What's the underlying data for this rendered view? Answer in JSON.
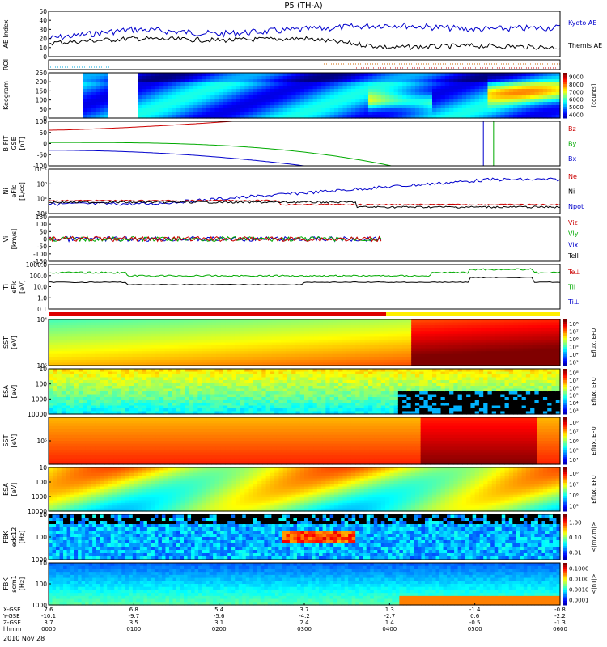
{
  "title": "P5 (TH-A)",
  "date": "2010 Nov 28",
  "panels": [
    {
      "id": "ae",
      "label": [
        "AE Index"
      ],
      "ticks": [
        "0",
        "10",
        "20",
        "30",
        "40",
        "50"
      ],
      "legend": [
        {
          "text": "Kyoto AE",
          "color": "#0000cc"
        },
        {
          "text": "Themis AE",
          "color": "#000000"
        }
      ]
    },
    {
      "id": "roi",
      "label": [
        "ROI"
      ],
      "ticks": [],
      "legend": []
    },
    {
      "id": "keogram",
      "label": [
        "Keogram"
      ],
      "ticks": [
        "0",
        "50",
        "100",
        "150",
        "200",
        "250"
      ],
      "colorbar": {
        "ticks": [
          "9000",
          "8000",
          "7000",
          "6000",
          "5000",
          "4000"
        ],
        "unit": "[counts]"
      },
      "legend": []
    },
    {
      "id": "bfit",
      "label": [
        "B FIT",
        "GSE",
        "[nT]"
      ],
      "ticks": [
        "-100",
        "-50",
        "0",
        "50",
        "100"
      ],
      "legend": [
        {
          "text": "Bz",
          "color": "#cc0000"
        },
        {
          "text": "By",
          "color": "#00aa00"
        },
        {
          "text": "Bx",
          "color": "#0000cc"
        }
      ]
    },
    {
      "id": "ni",
      "label": [
        "Ni",
        "eFlc",
        "[1/cc]"
      ],
      "ticks": [
        "10⁴",
        "10²",
        "10⁰",
        "10⁻²"
      ],
      "legend": [
        {
          "text": "Ne",
          "color": "#cc0000"
        },
        {
          "text": "Ni",
          "color": "#000000"
        },
        {
          "text": "Npot",
          "color": "#0000cc"
        }
      ]
    },
    {
      "id": "vi",
      "label": [
        "Vi",
        "[km/s]"
      ],
      "ticks": [
        "150",
        "100",
        "50",
        "0",
        "-50",
        "-100",
        "-150"
      ],
      "legend": [
        {
          "text": "Viz",
          "color": "#cc0000"
        },
        {
          "text": "Vly",
          "color": "#00aa00"
        },
        {
          "text": "Vix",
          "color": "#0000cc"
        },
        {
          "text": "Tell",
          "color": "#000000"
        }
      ]
    },
    {
      "id": "ti",
      "label": [
        "Ti",
        "eFlc",
        "[eV]"
      ],
      "ticks": [
        "1000.0",
        "100.0",
        "10.0",
        "1.0",
        "0.1"
      ],
      "legend": [
        {
          "text": "Te⊥",
          "color": "#cc0000"
        },
        {
          "text": "Til",
          "color": "#00aa00"
        },
        {
          "text": "Ti⊥",
          "color": "#0000cc"
        }
      ]
    },
    {
      "id": "sst_i",
      "label": [
        "SST",
        "[eV]"
      ],
      "ticks": [
        "10⁵",
        "10⁴"
      ],
      "colorbar": {
        "ticks": [
          "10⁸",
          "10⁷",
          "10⁶",
          "10⁵",
          "10⁴",
          "10³"
        ],
        "unit": "Eflux, EFU"
      },
      "legend": []
    },
    {
      "id": "esa_i",
      "label": [
        "ESA",
        "[eV]"
      ],
      "ticks": [
        "10000",
        "1000",
        "100",
        "10"
      ],
      "colorbar": {
        "ticks": [
          "10⁸",
          "10⁷",
          "10⁶",
          "10⁵",
          "10⁴",
          "10³"
        ],
        "unit": "Eflux, EFU"
      },
      "legend": []
    },
    {
      "id": "sst_e",
      "label": [
        "SST",
        "[eV]"
      ],
      "ticks": [
        "10⁵"
      ],
      "colorbar": {
        "ticks": [
          "10⁸",
          "10⁷",
          "10⁶",
          "10⁵",
          "10⁴"
        ],
        "unit": "Eflux, EFU"
      },
      "legend": []
    },
    {
      "id": "esa_e",
      "label": [
        "ESA",
        "[eV]"
      ],
      "ticks": [
        "10000",
        "1000",
        "100",
        "10"
      ],
      "colorbar": {
        "ticks": [
          "10⁸",
          "10⁷",
          "10⁶",
          "10⁵"
        ],
        "unit": "Eflux, EFU"
      },
      "legend": []
    },
    {
      "id": "fbk1",
      "label": [
        "FBK",
        "edc12",
        "[Hz]"
      ],
      "ticks": [
        "1000",
        "100",
        "10"
      ],
      "colorbar": {
        "ticks": [
          "1.00",
          "0.10",
          "0.01"
        ],
        "unit": "<|mV/m|>"
      },
      "legend": []
    },
    {
      "id": "fbk2",
      "label": [
        "FBK",
        "scm1",
        "[Hz]"
      ],
      "ticks": [
        "1000",
        "100",
        "10"
      ],
      "colorbar": {
        "ticks": [
          "0.1000",
          "0.0100",
          "0.0010",
          "0.0001"
        ],
        "unit": "<|nT|>"
      },
      "legend": []
    }
  ],
  "time_axis": {
    "row_labels": [
      "X-GSE",
      "Y-GSE",
      "Z-GSE",
      "hhmm"
    ],
    "columns": [
      {
        "x": "7.6",
        "y": "-10.1",
        "z": "3.7",
        "t": "0000"
      },
      {
        "x": "6.8",
        "y": "-9.7",
        "z": "3.5",
        "t": "0100"
      },
      {
        "x": "5.4",
        "y": "-5.6",
        "z": "3.1",
        "t": "0200"
      },
      {
        "x": "3.7",
        "y": "-4.2",
        "z": "2.4",
        "t": "0300"
      },
      {
        "x": "1.3",
        "y": "-2.7",
        "z": "1.4",
        "t": "0400"
      },
      {
        "x": "-1.4",
        "y": "0.6",
        "z": "-0.5",
        "t": "0500"
      },
      {
        "x": "-0.8",
        "y": "-2.2",
        "z": "-1.3",
        "t": "0600"
      }
    ]
  },
  "chart_data": {
    "type": "line",
    "title": "P5 (TH-A)",
    "x_label": "hhmm",
    "x": [
      "0000",
      "0100",
      "0200",
      "0300",
      "0400",
      "0500",
      "0600"
    ],
    "ylim_ae": [
      0,
      50
    ],
    "series": [
      {
        "name": "Kyoto AE",
        "values": [
          20,
          30,
          25,
          30,
          35,
          30,
          32
        ]
      },
      {
        "name": "Themis AE",
        "values": [
          15,
          20,
          18,
          20,
          10,
          12,
          10
        ]
      },
      {
        "name": "Bz",
        "values": [
          60,
          80,
          100,
          100,
          100,
          100,
          100
        ]
      },
      {
        "name": "By",
        "values": [
          0,
          -5,
          -15,
          -40,
          -100,
          -100,
          -100
        ]
      },
      {
        "name": "Bx",
        "values": [
          -30,
          -50,
          -80,
          -100,
          -100,
          -100,
          -100
        ]
      }
    ]
  }
}
